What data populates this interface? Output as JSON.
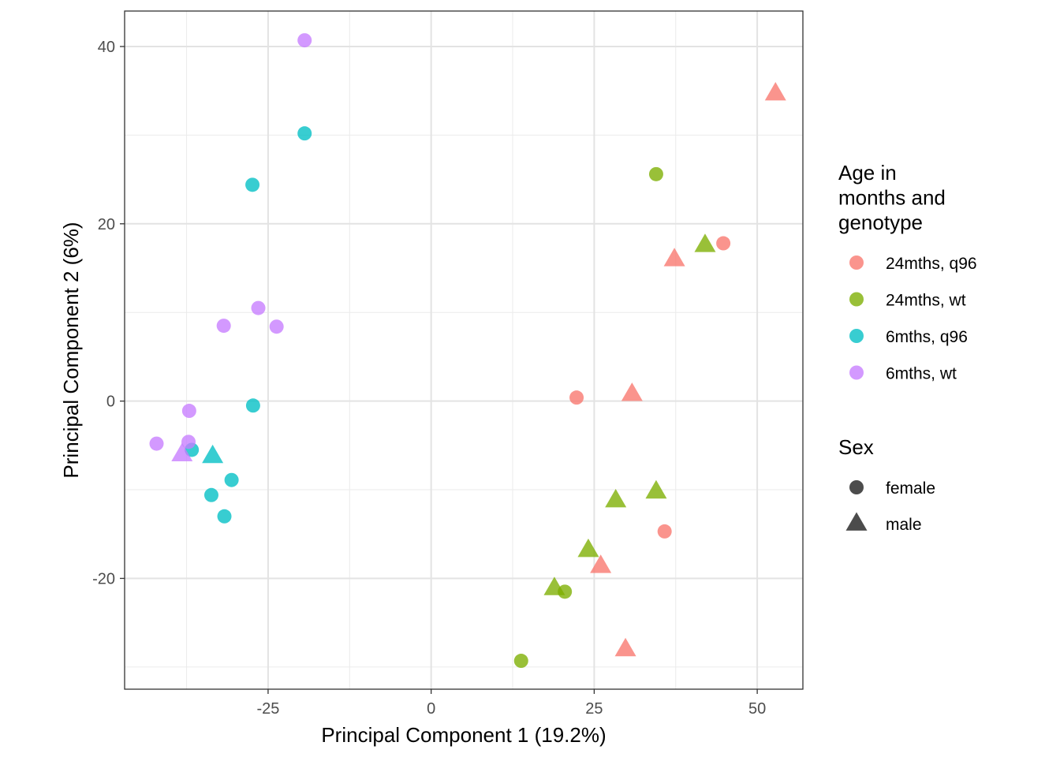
{
  "chart_data": {
    "type": "scatter",
    "xlabel": "Principal Component 1 (19.2%)",
    "ylabel": "Principal Component 2 (6%)",
    "xlim": [
      -47,
      57
    ],
    "ylim": [
      -32.5,
      44
    ],
    "x_ticks": [
      -25,
      0,
      25,
      50
    ],
    "x_tick_labels": [
      "-25",
      "0",
      "25",
      "50"
    ],
    "y_ticks": [
      -20,
      0,
      20,
      40
    ],
    "y_tick_labels": [
      "-20",
      "0",
      "20",
      "40"
    ],
    "grid": true,
    "legend_placement": "right",
    "color_legend": {
      "title_lines": [
        "Age in",
        "months and",
        "genotype"
      ],
      "entries": [
        {
          "label": "24mths, q96",
          "color": "#F8766D"
        },
        {
          "label": "24mths, wt",
          "color": "#7CAE00"
        },
        {
          "label": "6mths, q96",
          "color": "#00BFC4"
        },
        {
          "label": "6mths, wt",
          "color": "#C77CFF"
        }
      ]
    },
    "shape_legend": {
      "title": "Sex",
      "entries": [
        {
          "label": "female",
          "shape": "circle"
        },
        {
          "label": "male",
          "shape": "triangle"
        }
      ]
    },
    "series": [
      {
        "name": "24mths, q96",
        "color": "#F8766D",
        "points": [
          {
            "x": 52.8,
            "y": 34.7,
            "sex": "male"
          },
          {
            "x": 44.8,
            "y": 17.8,
            "sex": "female"
          },
          {
            "x": 37.3,
            "y": 16.0,
            "sex": "male"
          },
          {
            "x": 22.3,
            "y": 0.4,
            "sex": "female"
          },
          {
            "x": 30.8,
            "y": 0.8,
            "sex": "male"
          },
          {
            "x": 35.8,
            "y": -14.7,
            "sex": "female"
          },
          {
            "x": 26.0,
            "y": -18.6,
            "sex": "male"
          },
          {
            "x": 29.8,
            "y": -28.0,
            "sex": "male"
          }
        ]
      },
      {
        "name": "24mths, wt",
        "color": "#7CAE00",
        "points": [
          {
            "x": 34.5,
            "y": 25.6,
            "sex": "female"
          },
          {
            "x": 42.0,
            "y": 17.6,
            "sex": "male"
          },
          {
            "x": 28.3,
            "y": -11.2,
            "sex": "male"
          },
          {
            "x": 34.5,
            "y": -10.2,
            "sex": "male"
          },
          {
            "x": 24.1,
            "y": -16.8,
            "sex": "male"
          },
          {
            "x": 18.9,
            "y": -21.1,
            "sex": "male"
          },
          {
            "x": 20.5,
            "y": -21.5,
            "sex": "female"
          },
          {
            "x": 13.8,
            "y": -29.3,
            "sex": "female"
          }
        ]
      },
      {
        "name": "6mths, q96",
        "color": "#00BFC4",
        "points": [
          {
            "x": -19.4,
            "y": 30.2,
            "sex": "female"
          },
          {
            "x": -27.4,
            "y": 24.4,
            "sex": "female"
          },
          {
            "x": -27.3,
            "y": -0.5,
            "sex": "female"
          },
          {
            "x": -36.7,
            "y": -5.5,
            "sex": "female"
          },
          {
            "x": -33.5,
            "y": -6.2,
            "sex": "male"
          },
          {
            "x": -30.6,
            "y": -8.9,
            "sex": "female"
          },
          {
            "x": -33.7,
            "y": -10.6,
            "sex": "female"
          },
          {
            "x": -31.7,
            "y": -13.0,
            "sex": "female"
          }
        ]
      },
      {
        "name": "6mths, wt",
        "color": "#C77CFF",
        "points": [
          {
            "x": -19.4,
            "y": 40.7,
            "sex": "female"
          },
          {
            "x": -26.5,
            "y": 10.5,
            "sex": "female"
          },
          {
            "x": -31.8,
            "y": 8.5,
            "sex": "female"
          },
          {
            "x": -23.7,
            "y": 8.4,
            "sex": "female"
          },
          {
            "x": -37.1,
            "y": -1.1,
            "sex": "female"
          },
          {
            "x": -37.2,
            "y": -4.6,
            "sex": "female"
          },
          {
            "x": -42.1,
            "y": -4.8,
            "sex": "female"
          },
          {
            "x": -38.2,
            "y": -6.0,
            "sex": "male"
          }
        ]
      }
    ]
  }
}
